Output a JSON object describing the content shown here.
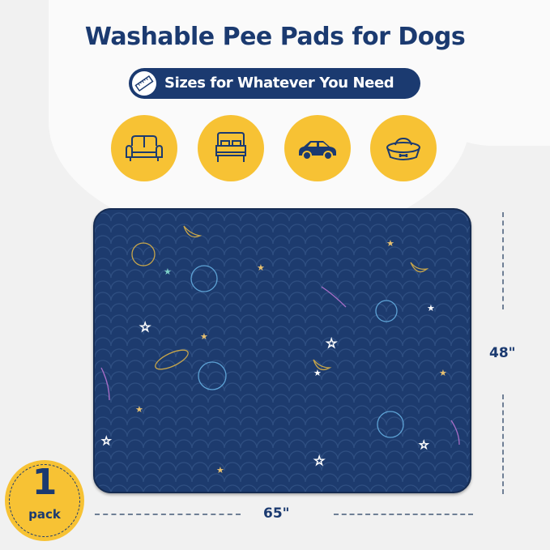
{
  "title": "Washable Pee Pads for Dogs",
  "subtitle": {
    "text": "Sizes for Whatever You Need",
    "icon": "ruler-icon"
  },
  "uses": [
    {
      "icon": "sofa-icon"
    },
    {
      "icon": "bed-icon"
    },
    {
      "icon": "car-icon"
    },
    {
      "icon": "pet-bowl-icon"
    }
  ],
  "dimensions": {
    "height": "48\"",
    "width": "65\""
  },
  "badge": {
    "count": "1",
    "unit": "pack"
  },
  "colors": {
    "navy": "#1b3a70",
    "yellow": "#f7c234",
    "pad": "#1d3b6e"
  }
}
